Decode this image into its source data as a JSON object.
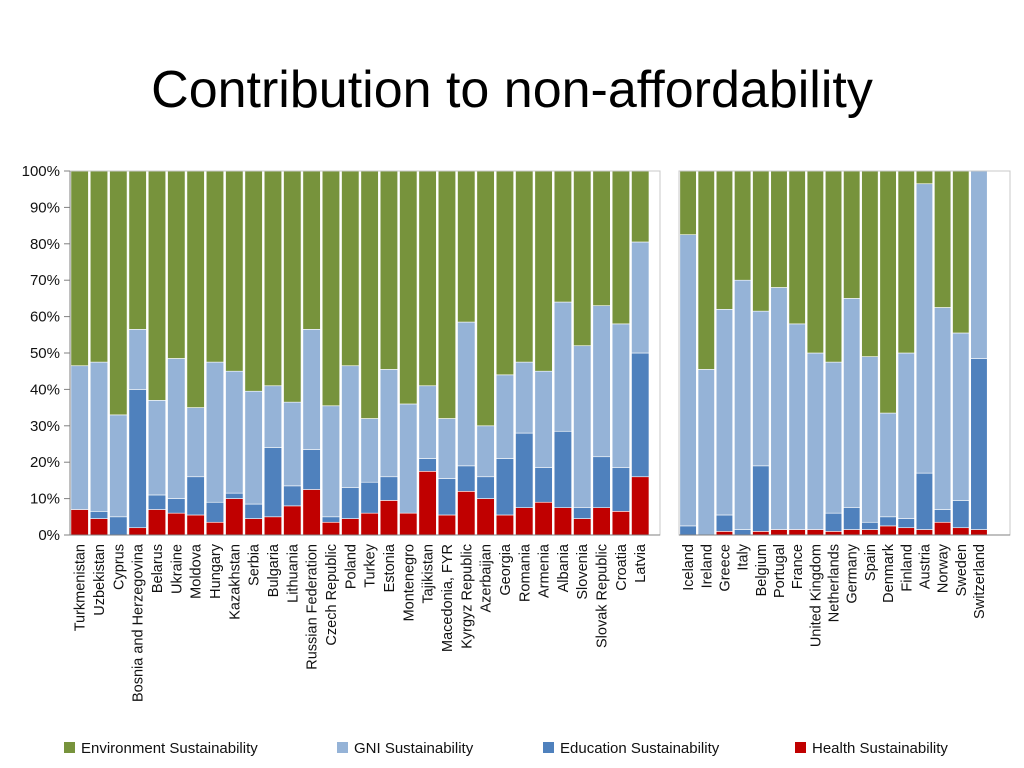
{
  "title": "Contribution to non-affordability",
  "colors": {
    "environment": "#77933C",
    "gni": "#95B3D7",
    "education": "#4F81BD",
    "health": "#C00000"
  },
  "chart_data": {
    "type": "bar",
    "stacked": true,
    "ylim": [
      0,
      100
    ],
    "yticks": [
      "0%",
      "10%",
      "20%",
      "30%",
      "40%",
      "50%",
      "60%",
      "70%",
      "80%",
      "90%",
      "100%"
    ],
    "legend_position": "bottom",
    "series_names": [
      "Environment Sustainability",
      "GNI Sustainability",
      "Education Sustainability",
      "Health Sustainability"
    ],
    "groups": [
      {
        "categories": [
          "Turkmenistan",
          "Uzbekistan",
          "Cyprus",
          "Bosnia and Herzegovina",
          "Belarus",
          "Ukraine",
          "Moldova",
          "Hungary",
          "Kazakhstan",
          "Serbia",
          "Bulgaria",
          "Lithuania",
          "Russian Federation",
          "Czech Republic",
          "Poland",
          "Turkey",
          "Estonia",
          "Montenegro",
          "Tajikistan",
          "Macedonia, FYR",
          "Kyrgyz Republic",
          "Azerbaijan",
          "Georgia",
          "Romania",
          "Armenia",
          "Albania",
          "Slovenia",
          "Slovak Republic",
          "Croatia",
          "Latvia"
        ],
        "series": [
          {
            "name": "Health Sustainability",
            "values": [
              7,
              4.5,
              0,
              2,
              7,
              6,
              5.5,
              3.5,
              10,
              4.5,
              5,
              8,
              12.5,
              3.5,
              4.5,
              6,
              9.5,
              6,
              17.5,
              5.5,
              12,
              10,
              5.5,
              7.5,
              9,
              7.5,
              4.5,
              7.5,
              6.5,
              16
            ]
          },
          {
            "name": "Education Sustainability",
            "values": [
              0,
              2,
              5,
              38,
              4,
              4,
              10.5,
              5.5,
              1.5,
              4,
              19,
              5.5,
              11,
              1.5,
              8.5,
              8.5,
              6.5,
              0,
              3.5,
              10,
              7,
              6,
              15.5,
              20.5,
              9.5,
              21,
              3,
              14,
              12,
              34
            ]
          },
          {
            "name": "GNI Sustainability",
            "values": [
              39.5,
              41,
              28,
              16.5,
              26,
              38.5,
              19,
              38.5,
              33.5,
              31,
              17,
              23,
              33,
              30.5,
              33.5,
              17.5,
              29.5,
              30,
              20,
              16.5,
              39.5,
              14,
              23,
              19.5,
              26.5,
              35.5,
              44.5,
              41.5,
              39.5,
              30.5
            ]
          },
          {
            "name": "Environment Sustainability",
            "values": [
              53.5,
              52.5,
              67,
              43.5,
              63,
              51.5,
              65,
              52.5,
              55,
              60.5,
              59,
              63.5,
              43.5,
              64.5,
              53.5,
              68,
              54.5,
              64,
              59,
              68,
              41.5,
              70,
              56,
              52.5,
              55,
              36,
              48,
              37,
              42,
              19.5
            ]
          }
        ]
      },
      {
        "categories": [
          "Iceland",
          "Ireland",
          "Greece",
          "Italy",
          "Belgium",
          "Portugal",
          "France",
          "United Kingdom",
          "Netherlands",
          "Germany",
          "Spain",
          "Denmark",
          "Finland",
          "Austria",
          "Norway",
          "Sweden",
          "Switzerland"
        ],
        "series": [
          {
            "name": "Health Sustainability",
            "values": [
              0,
              0,
              1,
              0,
              1,
              1.5,
              1.5,
              1.5,
              1,
              1.5,
              1.5,
              2.5,
              2,
              1.5,
              3.5,
              2,
              1.5
            ]
          },
          {
            "name": "Education Sustainability",
            "values": [
              2.5,
              0,
              4.5,
              1.5,
              18,
              0,
              0,
              0,
              5,
              6,
              2,
              2.5,
              2.5,
              15.5,
              3.5,
              7.5,
              47
            ]
          },
          {
            "name": "GNI Sustainability",
            "values": [
              80,
              45.5,
              56.5,
              68.5,
              42.5,
              66.5,
              56.5,
              48.5,
              41.5,
              57.5,
              45.5,
              28.5,
              45.5,
              79.5,
              55.5,
              46,
              51.5
            ]
          },
          {
            "name": "Environment Sustainability",
            "values": [
              17.5,
              54.5,
              38,
              30,
              38.5,
              32,
              42,
              50,
              52.5,
              35,
              51,
              66.5,
              50,
              3.5,
              37.5,
              44.5,
              0
            ]
          }
        ]
      }
    ]
  }
}
